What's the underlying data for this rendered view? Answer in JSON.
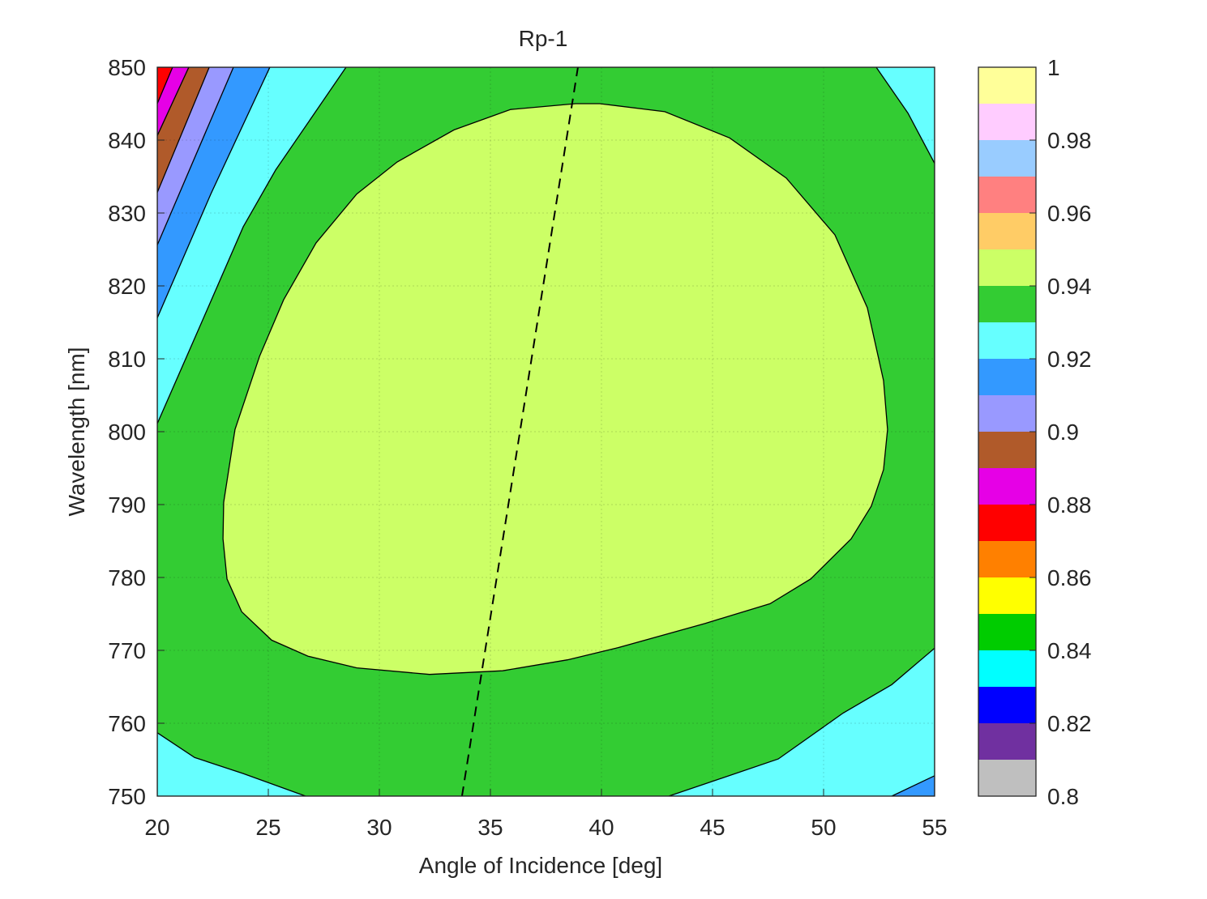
{
  "chart_data": {
    "type": "contour",
    "title": "Rp-1",
    "xlabel": "Angle of Incidence [deg]",
    "ylabel": "Wavelength [nm]",
    "xlim": [
      20,
      55
    ],
    "xticks": [
      20,
      25,
      30,
      35,
      40,
      45,
      50,
      55
    ],
    "ylim": [
      750,
      850
    ],
    "yticks": [
      750,
      760,
      770,
      780,
      790,
      800,
      810,
      820,
      830,
      840,
      850
    ],
    "grid": true,
    "levels": [
      0.8,
      0.81,
      0.82,
      0.83,
      0.84,
      0.85,
      0.86,
      0.87,
      0.88,
      0.89,
      0.9,
      0.91,
      0.92,
      0.93,
      0.94,
      0.95,
      0.96,
      0.97,
      0.98,
      0.99,
      1
    ],
    "colors": [
      "#bfbfbf",
      "#7030a0",
      "#0000ff",
      "#00ffff",
      "#00cc00",
      "#ffff00",
      "#ff8000",
      "#ff0000",
      "#e600e6",
      "#b05a2a",
      "#9999ff",
      "#3399ff",
      "#66ffff",
      "#33cc33",
      "#ccff66",
      "#ffcc66",
      "#ff8080",
      "#99ccff",
      "#ffccff",
      "#ffff99"
    ],
    "colorbar_ticks": [
      0.8,
      0.82,
      0.84,
      0.86,
      0.88,
      0.9,
      0.92,
      0.94,
      0.96,
      0.98,
      1
    ],
    "regions": [
      {
        "level": 0.92,
        "x": [
          20,
          55,
          55,
          20
        ],
        "y": [
          750,
          750,
          850,
          850
        ]
      },
      {
        "level": 0.93,
        "x": [
          20,
          21.97,
          23.87,
          25.33,
          28.5,
          52.37,
          53.8,
          55,
          55,
          53.07,
          50.88,
          47.96,
          43.03,
          26.68,
          23.87,
          21.68,
          20
        ],
        "y": [
          801.1,
          814.8,
          828.1,
          835.9,
          850,
          850,
          843.7,
          836.8,
          770.3,
          765.3,
          761.4,
          755.1,
          750,
          750,
          753.1,
          755.3,
          758.7
        ]
      },
      {
        "level": 0.94,
        "x": [
          38.83,
          39.93,
          42.85,
          45.77,
          48.32,
          50.51,
          51.97,
          52.7,
          52.88,
          52.7,
          52.15,
          51.24,
          49.42,
          47.59,
          44.67,
          40.66,
          38.47,
          35.55,
          32.26,
          28.98,
          26.79,
          25.15,
          23.8,
          23.14,
          22.96,
          22.99,
          23.5,
          24.6,
          25.69,
          27.15,
          28.98,
          30.8,
          33.36,
          35.91
        ],
        "y": [
          845,
          845,
          843.9,
          840.3,
          834.8,
          827,
          817,
          807,
          800.3,
          794.8,
          789.8,
          785.3,
          779.8,
          776.4,
          773.7,
          770.3,
          768.7,
          767.2,
          766.7,
          767.6,
          769.2,
          771.4,
          775.3,
          779.8,
          785.3,
          790.3,
          800.3,
          810.3,
          818.1,
          825.9,
          832.6,
          837,
          841.4,
          844.2
        ]
      },
      {
        "level": 0.91,
        "x": [
          20,
          22.41,
          25.07,
          20
        ],
        "y": [
          815.6,
          832.6,
          850,
          850
        ]
      },
      {
        "level": 0.9,
        "x": [
          20,
          23.43,
          20
        ],
        "y": [
          825.6,
          850,
          850
        ]
      },
      {
        "level": 0.89,
        "x": [
          20,
          22.34,
          20
        ],
        "y": [
          832.8,
          850,
          850
        ]
      },
      {
        "level": 0.88,
        "x": [
          20,
          21.42,
          20
        ],
        "y": [
          840.6,
          850,
          850
        ]
      },
      {
        "level": 0.87,
        "x": [
          20,
          20.69,
          20
        ],
        "y": [
          845,
          850,
          850
        ]
      },
      {
        "level": 0.91,
        "x": [
          53.07,
          55,
          55
        ],
        "y": [
          750,
          752.8,
          750
        ]
      }
    ],
    "line": {
      "x": [
        33.72,
        38.94
      ],
      "y": [
        750,
        850
      ]
    }
  }
}
